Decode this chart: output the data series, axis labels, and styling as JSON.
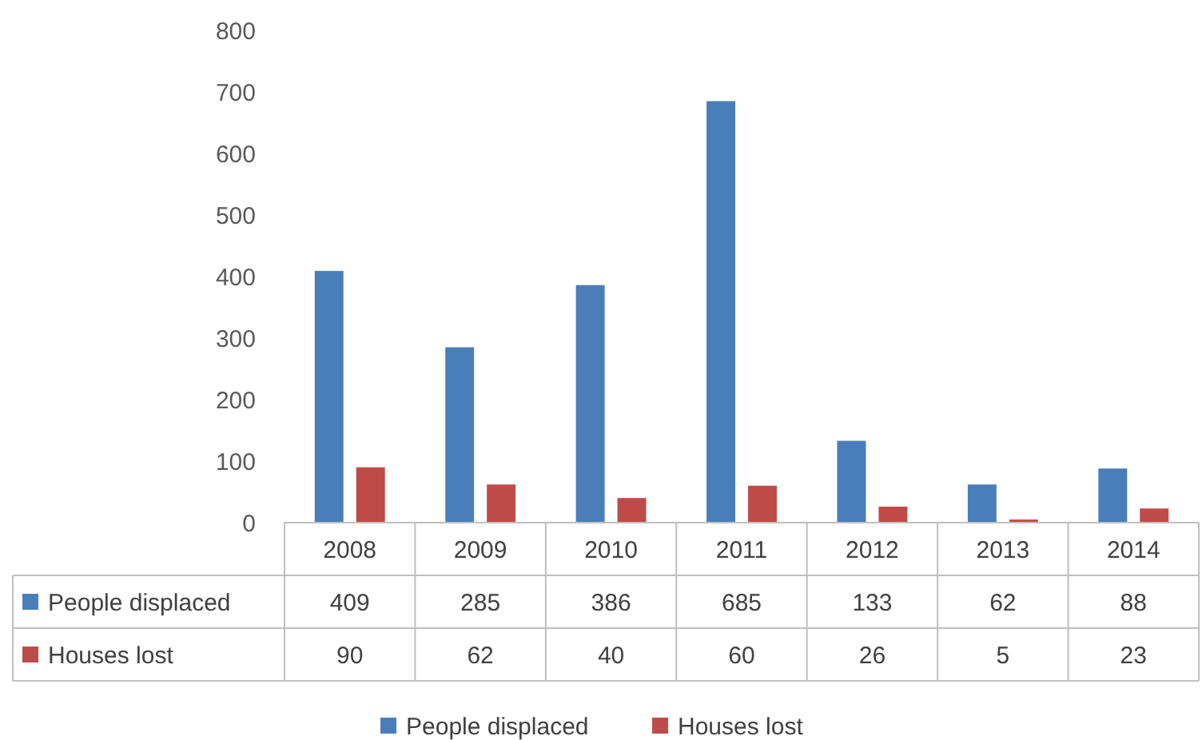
{
  "chart_data": {
    "type": "bar",
    "categories": [
      "2008",
      "2009",
      "2010",
      "2011",
      "2012",
      "2013",
      "2014"
    ],
    "series": [
      {
        "name": "People displaced",
        "color": "#4a7ebb",
        "values": [
          409,
          285,
          386,
          685,
          133,
          62,
          88
        ]
      },
      {
        "name": "Houses lost",
        "color": "#be4b48",
        "values": [
          90,
          62,
          40,
          60,
          26,
          5,
          23
        ]
      }
    ],
    "ylim": [
      0,
      800
    ],
    "yticks": [
      0,
      100,
      200,
      300,
      400,
      500,
      600,
      700,
      800
    ],
    "grid": false,
    "legend": "bottom",
    "data_labels": true
  }
}
